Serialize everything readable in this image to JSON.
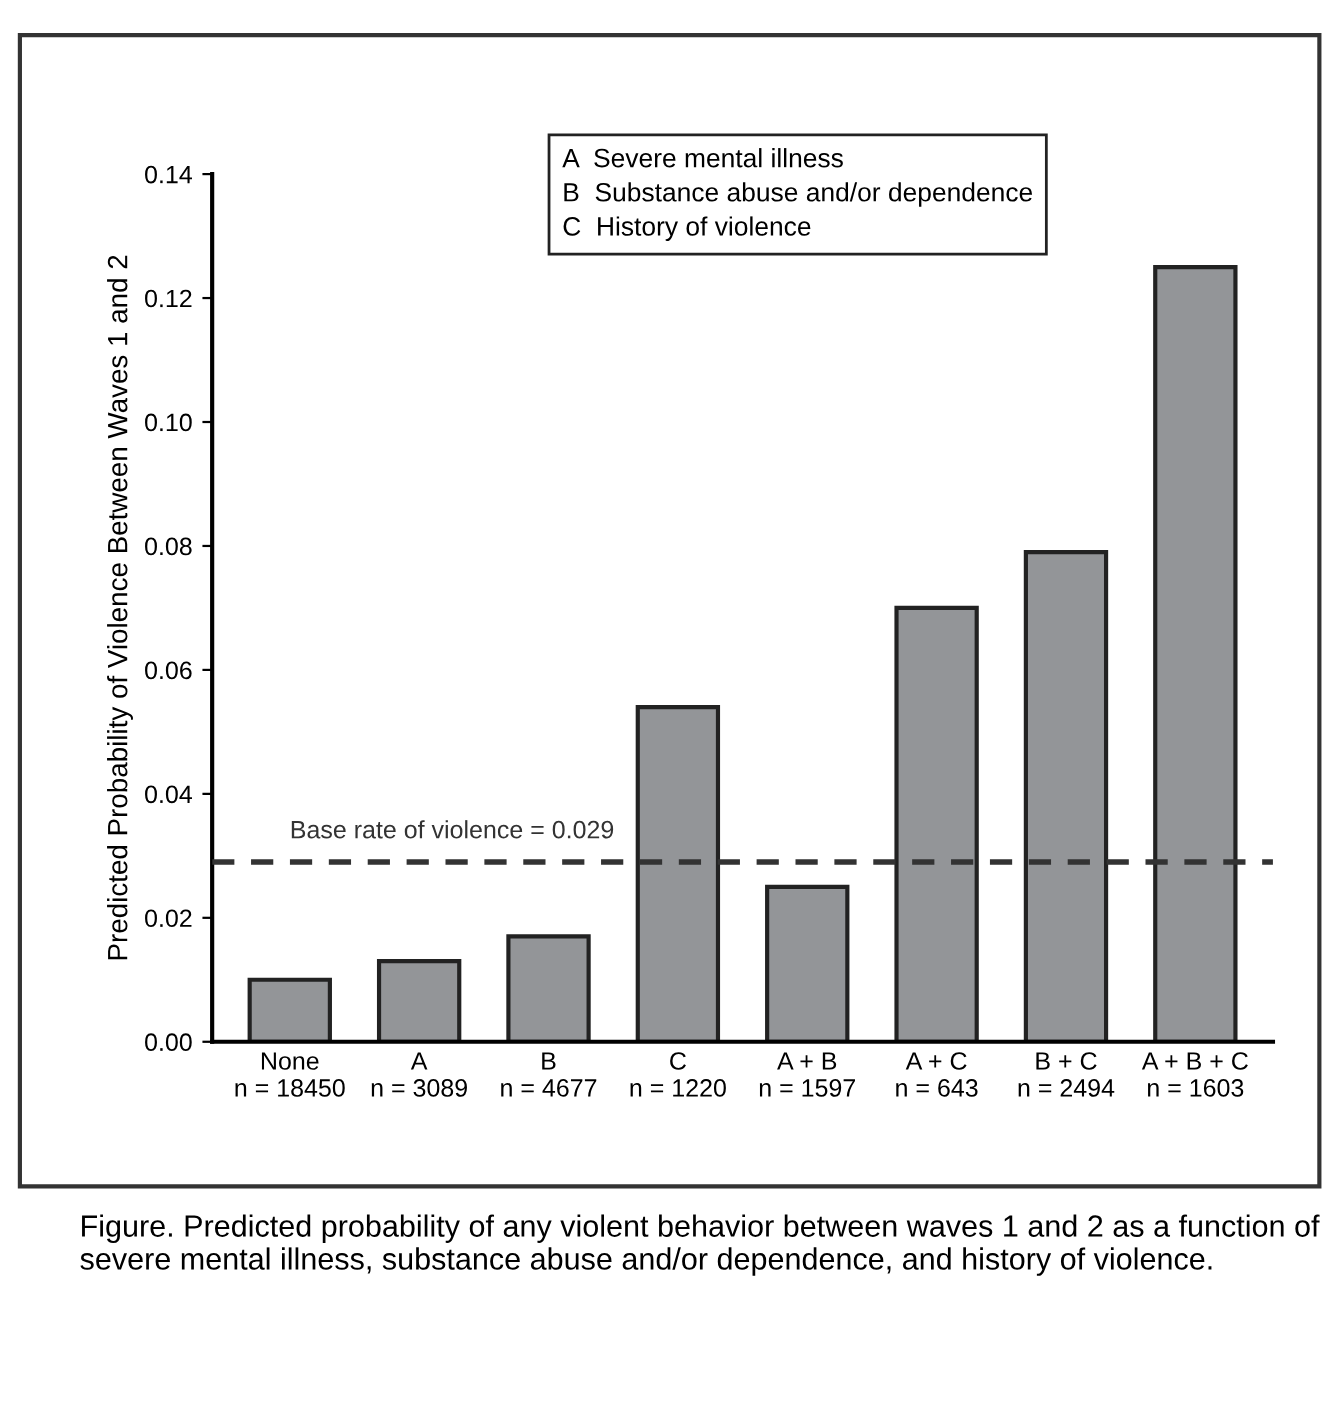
{
  "chart_data": {
    "type": "bar",
    "ylabel": "Predicted Probability of Violence Between Waves 1 and 2",
    "categories": [
      "None\nn = 18450",
      "A\nn = 3089",
      "B\nn = 4677",
      "C\nn = 1220",
      "A + B\nn = 1597",
      "A + C\nn = 643",
      "B + C\nn = 2494",
      "A + B + C\nn = 1603"
    ],
    "values": [
      0.01,
      0.013,
      0.017,
      0.054,
      0.025,
      0.07,
      0.079,
      0.125
    ],
    "color": "#939598",
    "ylim": [
      0,
      0.14
    ],
    "yticks": [
      {
        "value": 0,
        "label": "0.00"
      },
      {
        "value": 0.02,
        "label": "0.02"
      },
      {
        "value": 0.04,
        "label": "0.04"
      },
      {
        "value": 0.06,
        "label": "0.06"
      },
      {
        "value": 0.08,
        "label": "0.08"
      },
      {
        "value": 0.1,
        "label": "0.10"
      },
      {
        "value": 0.12,
        "label": "0.12"
      },
      {
        "value": 0.14,
        "label": "0.14"
      }
    ],
    "ref_lines": [
      {
        "axis": "y",
        "value": 0.029,
        "label": "Base rate of violence = 0.029",
        "line_style": "dashed",
        "color": "#333333"
      }
    ],
    "annotations": [
      "A  Severe mental illness\nB  Substance abuse and/or dependence\nC  History of violence",
      "Figure. Predicted probability of any violent behavior between waves 1 and 2 as a function of severe mental illness, substance abuse and/or dependence, and history of violence."
    ],
    "grid": false,
    "legend": false
  }
}
